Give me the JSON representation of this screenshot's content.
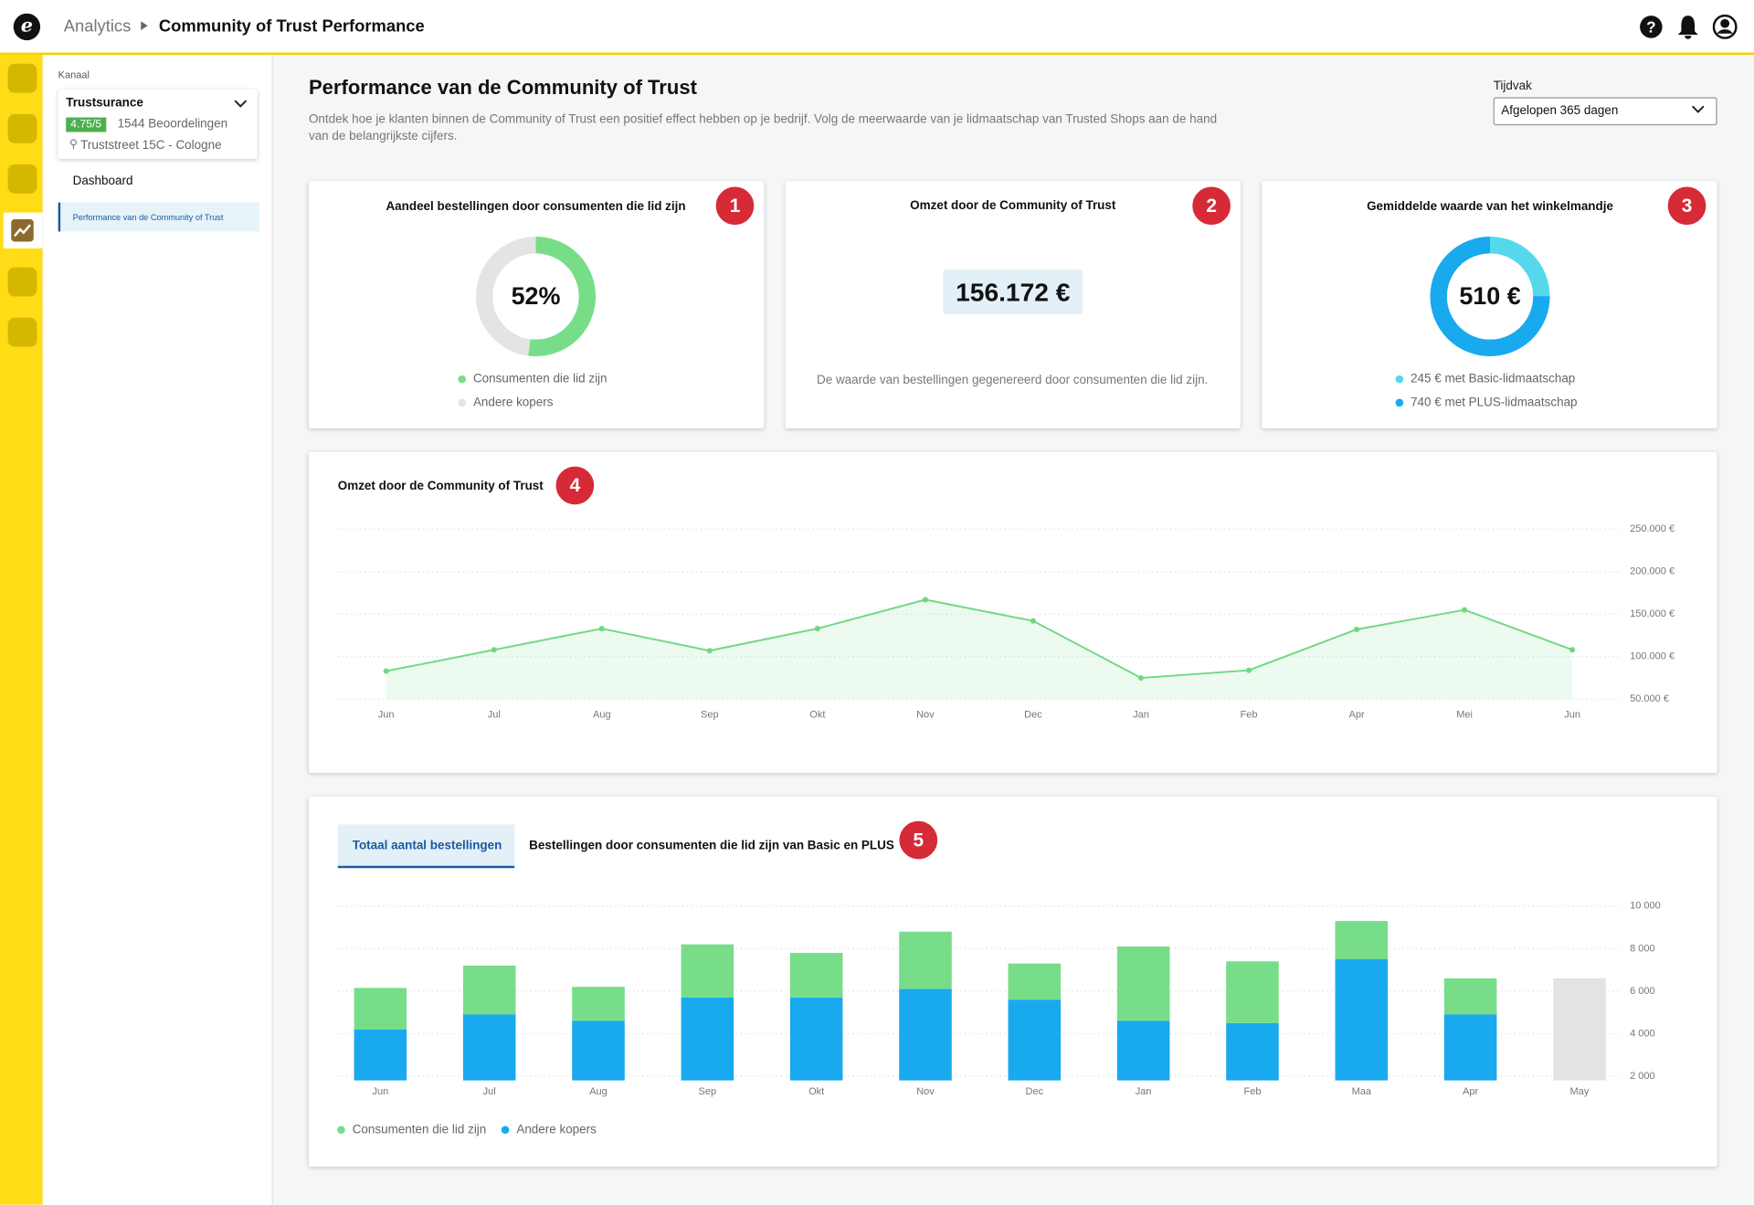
{
  "header": {
    "section": "Analytics",
    "title": "Community of Trust Performance"
  },
  "sidebar": {
    "channel_label": "Kanaal",
    "channel": "Trustsurance",
    "rating": "4.75/5",
    "reviews": "1544 Beoordelingen",
    "address": "Truststreet 15C - Cologne",
    "nav": [
      "Dashboard",
      "Performance van de Community of Trust"
    ]
  },
  "page": {
    "title": "Performance van de Community of Trust",
    "description": "Ontdek hoe je klanten binnen de Community of Trust een positief effect hebben op je bedrijf. Volg de meerwaarde van je lidmaatschap van Trusted Shops aan de hand van de belangrijkste cijfers.",
    "period_label": "Tijdvak",
    "period": "Afgelopen 365 dagen"
  },
  "revenue_card": {
    "title": "Omzet door de Community of Trust",
    "badge": "2",
    "value": "156.172 €",
    "description": "De waarde van bestellingen gegenereerd door consumenten die lid zijn."
  },
  "chart_data": [
    {
      "type": "pie",
      "title": "Aandeel bestellingen door consumenten die lid zijn",
      "badge": "1",
      "categories": [
        "Consumenten die lid zijn",
        "Andere kopers"
      ],
      "colors": [
        "#77dd88",
        "#e4e4e4"
      ],
      "values": [
        52,
        48
      ],
      "value_labels": [
        "52%",
        null
      ]
    },
    {
      "type": "pie",
      "title": "Gemiddelde waarde van het winkelmandje",
      "badge": "3",
      "center_label": "510 €",
      "categories": [
        "245 € met Basic-lidmaatschap",
        "740 € met PLUS-lidmaatschap"
      ],
      "colors": [
        "#55d8ec",
        "#19a9ee"
      ],
      "values": [
        245,
        740
      ]
    },
    {
      "type": "line",
      "title": "Omzet door de Community of Trust",
      "badge": "4",
      "color": "#6fd982",
      "grid": true,
      "categories": [
        "Jun",
        "Jul",
        "Aug",
        "Sep",
        "Okt",
        "Nov",
        "Dec",
        "Jan",
        "Feb",
        "Apr",
        "Mei",
        "Jun"
      ],
      "values": [
        83000,
        108000,
        133000,
        107000,
        133000,
        167000,
        142000,
        75000,
        84000,
        132000,
        155000,
        108000
      ],
      "ylim": [
        50000,
        250000
      ],
      "yticks": [
        {
          "value": 50000,
          "label": "50.000 €"
        },
        {
          "value": 100000,
          "label": "100.000 €"
        },
        {
          "value": 150000,
          "label": "150.000 €"
        },
        {
          "value": 200000,
          "label": "200.000 €"
        },
        {
          "value": 250000,
          "label": "250.000 €"
        }
      ]
    },
    {
      "type": "bar",
      "badge": "5",
      "tabs": [
        "Totaal aantal bestellingen",
        "Bestellingen door consumenten die lid zijn van Basic en PLUS"
      ],
      "grid": true,
      "categories": [
        "Jun",
        "Jul",
        "Aug",
        "Sep",
        "Okt",
        "Nov",
        "Dec",
        "Jan",
        "Feb",
        "Maa",
        "Apr",
        "May"
      ],
      "series": [
        {
          "name": "Consumenten die lid zijn",
          "color": "#77dd88",
          "values": [
            1950,
            2300,
            1600,
            2500,
            2100,
            2700,
            1700,
            3500,
            2900,
            1800,
            1700,
            null
          ]
        },
        {
          "name": "Andere kopers",
          "color": "#19a9ee",
          "values": [
            4200,
            4900,
            4600,
            5700,
            5700,
            6100,
            5600,
            4600,
            4500,
            7500,
            4900,
            null
          ]
        }
      ],
      "incomplete": {
        "color": "#e3e3e3",
        "values": [
          null,
          null,
          null,
          null,
          null,
          null,
          null,
          null,
          null,
          null,
          null,
          6600
        ]
      },
      "ylim": [
        1800,
        10600
      ],
      "yticks": [
        {
          "value": 2000,
          "label": "2 000"
        },
        {
          "value": 4000,
          "label": "4 000"
        },
        {
          "value": 6000,
          "label": "6 000"
        },
        {
          "value": 8000,
          "label": "8 000"
        },
        {
          "value": 10000,
          "label": "10 000"
        }
      ]
    }
  ]
}
